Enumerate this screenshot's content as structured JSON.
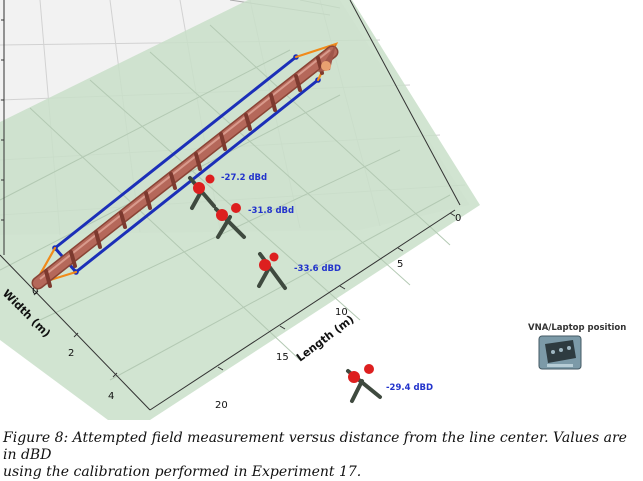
{
  "axes": {
    "width_label": "Width (m)",
    "length_label": "Length (m)",
    "width_ticks": [
      "0",
      "2",
      "4"
    ],
    "length_ticks": [
      "0",
      "5",
      "10",
      "15",
      "20"
    ]
  },
  "measurements": [
    {
      "text": "-27.2 dBd"
    },
    {
      "text": "-31.8 dBd"
    },
    {
      "text": "-33.6 dBD"
    },
    {
      "text": "-29.4 dBD"
    }
  ],
  "vna": {
    "label": "VNA/Laptop position"
  },
  "caption": {
    "line1": "Figure 8: Attempted field measurement versus distance from the line center. Values are in dBD",
    "line2": "using the calibration performed in Experiment 17."
  },
  "colors": {
    "ground_plane": "#c9dfc9",
    "blue_wire": "#1b2fb8",
    "orange_wire": "#f08a1a",
    "line_tube": "#b5685a",
    "probe_head": "#dd1f1f",
    "probe_body": "#3f4a3f",
    "label_blue": "#2233cc"
  },
  "icons": {
    "probe": "dipole-probe-icon",
    "vna": "vna-laptop-icon"
  }
}
